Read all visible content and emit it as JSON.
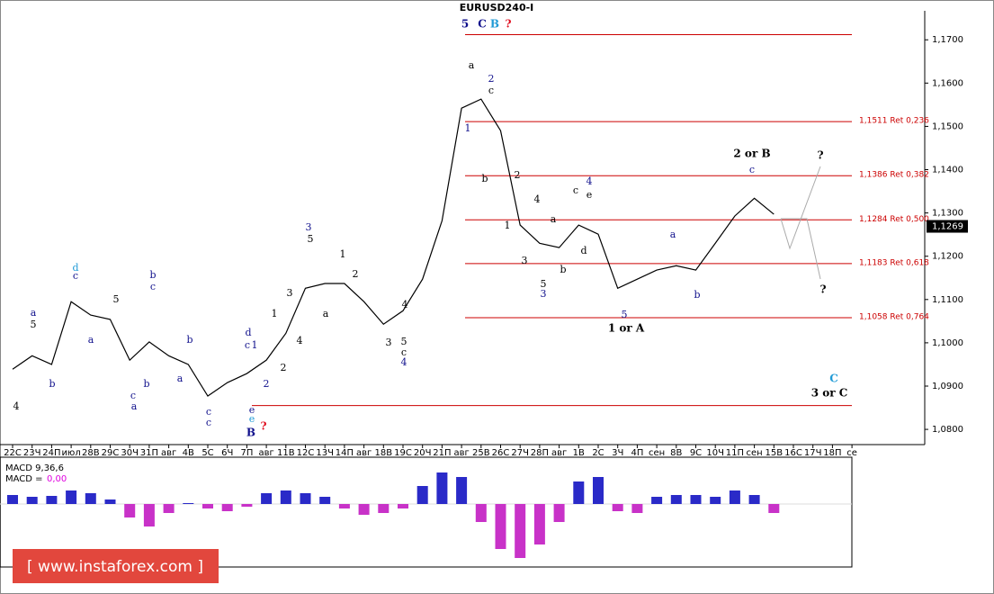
{
  "chart_data": {
    "type": "line",
    "title": "EURUSD240-I",
    "categories": [
      "22С",
      "23Ч",
      "24П",
      "июл",
      "28В",
      "29С",
      "30Ч",
      "31П",
      "авг",
      "4В",
      "5С",
      "6Ч",
      "7П",
      "авг",
      "11В",
      "12С",
      "13Ч",
      "14П",
      "авг",
      "18В",
      "19С",
      "20Ч",
      "21П",
      "авг",
      "25В",
      "26С",
      "27Ч",
      "28П",
      "авг",
      "1В",
      "2С",
      "3Ч",
      "4П",
      "сен",
      "8В",
      "9С",
      "10Ч",
      "11П",
      "сен",
      "15В",
      "16С",
      "17Ч",
      "18П",
      "се"
    ],
    "series": [
      {
        "color": "#000000",
        "values": [
          1.0939,
          1.097,
          1.095,
          1.1095,
          1.1064,
          1.1054,
          1.096,
          1.1002,
          1.097,
          1.095,
          1.0877,
          1.0908,
          1.0929,
          1.096,
          1.1022,
          1.1126,
          1.1137,
          1.1137,
          1.1095,
          1.1043,
          1.1074,
          1.1147,
          1.1282,
          1.1542,
          1.1563,
          1.149,
          1.1272,
          1.123,
          1.122,
          1.1272,
          1.1251,
          1.1126,
          1.1147,
          1.1168,
          1.1178,
          1.1168,
          1.123,
          1.1293,
          1.1334,
          1.1297,
          null,
          null,
          null,
          null
        ]
      }
    ],
    "ylim": [
      1.0769,
      1.1767
    ],
    "yticks": [
      {
        "value": 1.08,
        "label": "1,0800"
      },
      {
        "value": 1.09,
        "label": "1,0900"
      },
      {
        "value": 1.1,
        "label": "1,1000"
      },
      {
        "value": 1.11,
        "label": "1,1100"
      },
      {
        "value": 1.12,
        "label": "1,1200"
      },
      {
        "value": 1.13,
        "label": "1,1300"
      },
      {
        "value": 1.14,
        "label": "1,1400"
      },
      {
        "value": 1.15,
        "label": "1,1500"
      },
      {
        "value": 1.16,
        "label": "1,1600"
      },
      {
        "value": 1.17,
        "label": "1,1700"
      }
    ],
    "level_color": "#cc0000",
    "levels": [
      {
        "value": 1.1712
      },
      {
        "value": 1.1511,
        "label": "1,1511 Ret 0,236"
      },
      {
        "value": 1.1386,
        "label": "1,1386 Ret 0,382"
      },
      {
        "value": 1.1284,
        "label": "1,1284 Ret 0,500"
      },
      {
        "value": 1.1183,
        "label": "1,1183 Ret 0,618"
      },
      {
        "value": 1.1058,
        "label": "1,1058 Ret 0,764"
      },
      {
        "value": 1.0855
      }
    ],
    "last_price": {
      "value": 1.1269,
      "label": "1,1269"
    },
    "wave_labels": [
      "5",
      "C",
      "B",
      "?",
      "a",
      "2",
      "c",
      "1",
      "b",
      "2",
      "1",
      "4",
      "a",
      "3",
      "5",
      "3",
      "b",
      "c",
      "4",
      "e",
      "d",
      "5",
      "1 or A",
      "a",
      "b",
      "2 or B",
      "c",
      "?",
      "?",
      "d",
      "c",
      "b",
      "c",
      "5",
      "a",
      "5",
      "a",
      "b",
      "4",
      "a",
      "c",
      "b",
      "b",
      "a",
      "c",
      "c",
      "d",
      "c",
      "1",
      "e",
      "e",
      "B",
      "?",
      "2",
      "1",
      "2",
      "3",
      "4",
      "3",
      "5",
      "a",
      "1",
      "2",
      "3",
      "4",
      "5",
      "c",
      "4",
      "C",
      "3 or C"
    ],
    "macd": {
      "title": "MACD 9,36,6",
      "signal_label": "MACD = ",
      "signal_value_label": "0,00",
      "positive_color": "#2a2ac8",
      "negative_color": "#c832c8",
      "values": [
        0.001,
        0.0008,
        0.0009,
        0.0015,
        0.0012,
        0.0005,
        -0.0015,
        -0.0025,
        -0.001,
        0.0001,
        -0.0005,
        -0.0008,
        -0.0003,
        0.0012,
        0.0015,
        0.0012,
        0.0008,
        -0.0005,
        -0.0012,
        -0.001,
        -0.0005,
        0.002,
        0.0035,
        0.003,
        -0.002,
        -0.005,
        -0.006,
        -0.0045,
        -0.002,
        0.0025,
        0.003,
        -0.0008,
        -0.001,
        0.0008,
        0.001,
        0.001,
        0.0008,
        0.0015,
        0.001,
        -0.001,
        null,
        null,
        null,
        null
      ]
    },
    "watermark": "[ www.instaforex.com ]"
  }
}
